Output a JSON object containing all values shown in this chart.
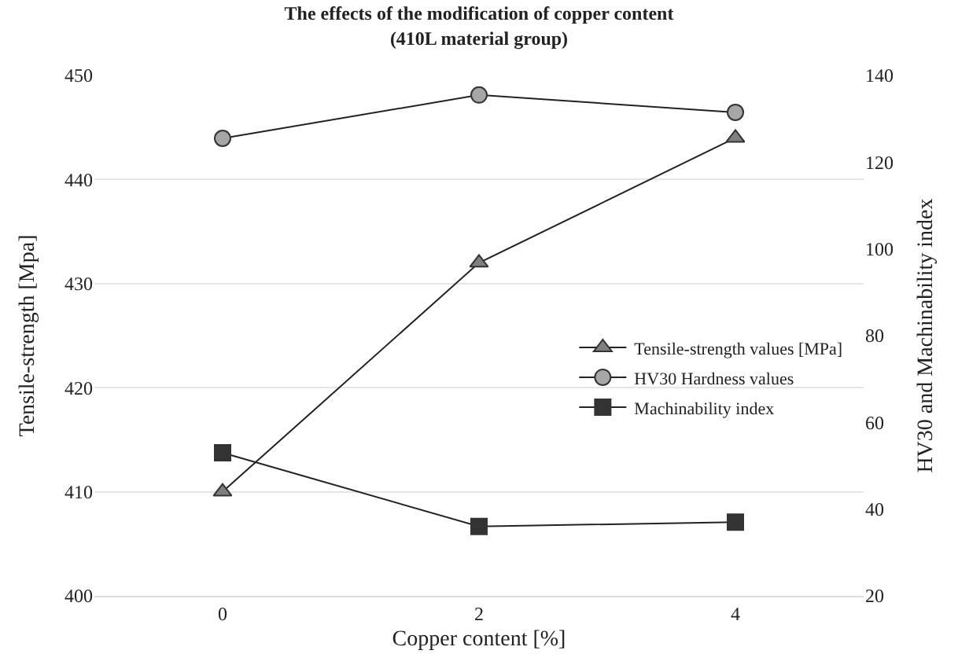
{
  "chart_data": {
    "type": "line",
    "title": "The effects of the modification of copper content\n(410L material group)",
    "xlabel": "Copper content [%]",
    "ylabel": "Tensile-strength [Mpa]",
    "y2label": "HV30 and Machinability index",
    "categories": [
      "0",
      "2",
      "4"
    ],
    "series": [
      {
        "name": "Tensile-strength values [MPa]",
        "color": "#7f7f7f",
        "marker": "triangle",
        "values": [
          410,
          432,
          444
        ]
      },
      {
        "name": "HV30 Hardness values",
        "color": "#a6a6a6",
        "marker": "circle",
        "axis": "y2",
        "values": [
          125.5,
          135.5,
          131.5
        ]
      },
      {
        "name": "Machinability index",
        "color": "#333333",
        "marker": "square",
        "axis": "y2",
        "values": [
          53,
          36,
          37
        ]
      }
    ],
    "ylim": [
      400,
      450
    ],
    "yticks": [
      400,
      410,
      420,
      430,
      440,
      450
    ],
    "y2lim": [
      20,
      140
    ],
    "y2ticks": [
      20,
      40,
      60,
      80,
      100,
      120,
      140
    ],
    "grid": "y",
    "legend": "right"
  }
}
